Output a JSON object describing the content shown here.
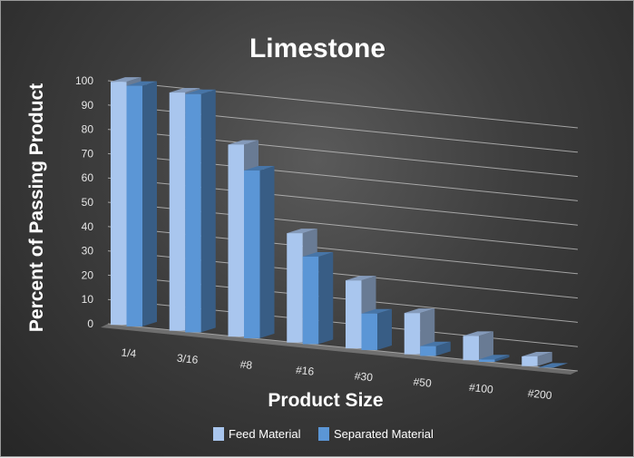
{
  "chart_data": {
    "type": "bar",
    "title": "Limestone",
    "xlabel": "Product Size",
    "ylabel": "Percent of Passing Product",
    "categories": [
      "1/4",
      "3/16",
      "#8",
      "#16",
      "#30",
      "#50",
      "#100",
      "#200"
    ],
    "series": [
      {
        "name": "Feed Material",
        "values": [
          100,
          98,
          79,
          45,
          28,
          17,
          10,
          4
        ],
        "color": "#a9c6ee"
      },
      {
        "name": "Separated Material",
        "values": [
          99,
          98,
          69,
          36,
          15,
          4,
          1,
          0
        ],
        "color": "#5b96d6"
      }
    ],
    "ylim": [
      0,
      100
    ],
    "yticks": [
      0,
      10,
      20,
      30,
      40,
      50,
      60,
      70,
      80,
      90,
      100
    ],
    "grid": true,
    "legend_position": "bottom",
    "style": "3d-clustered-column"
  }
}
